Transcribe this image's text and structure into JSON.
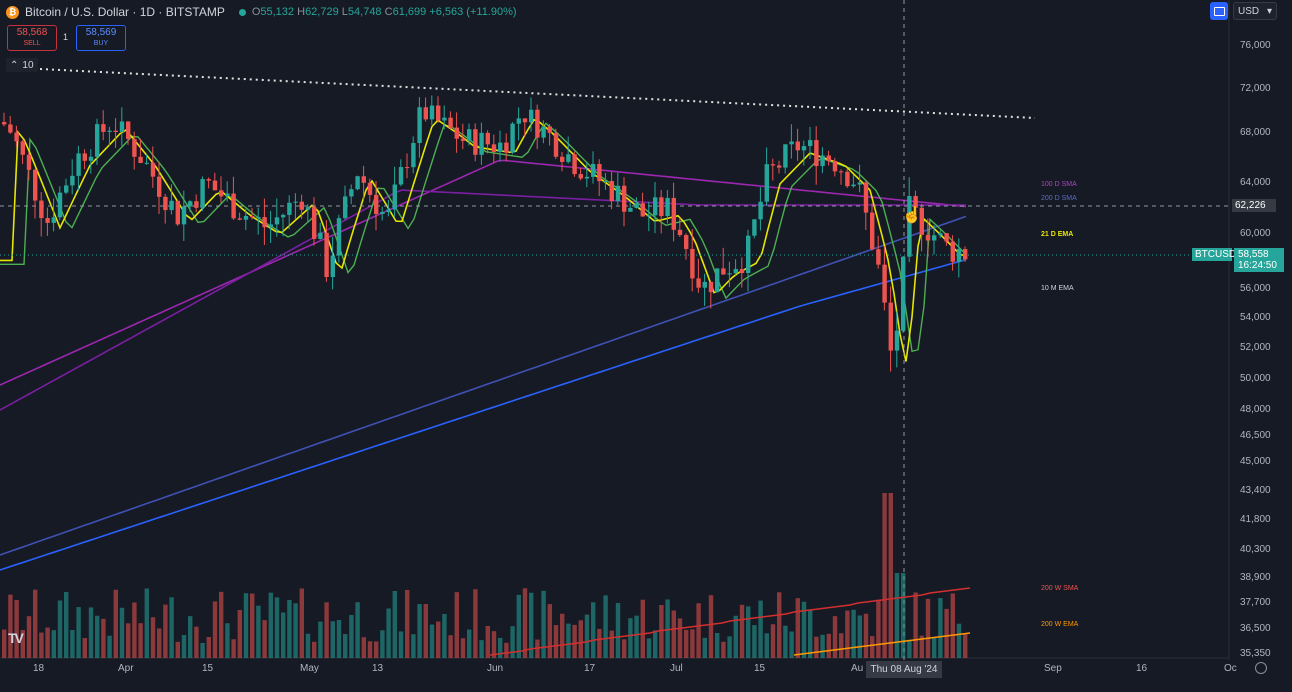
{
  "header": {
    "symbol_title": "Bitcoin / U.S. Dollar · 1D · BITSTAMP",
    "open_label": "O",
    "open": "55,132",
    "high_label": "H",
    "high": "62,729",
    "low_label": "L",
    "low": "54,748",
    "close_label": "C",
    "close": "61,699",
    "change": "+6,563 (+11.90%)"
  },
  "trade": {
    "sell_price": "58,568",
    "sell_label": "SELL",
    "spread": "1",
    "buy_price": "58,569",
    "buy_label": "BUY"
  },
  "indicator_toggle": "10",
  "currency": "USD",
  "price_axis": [
    "76,000",
    "72,000",
    "68,000",
    "64,000",
    "60,000",
    "56,000",
    "54,000",
    "52,000",
    "50,000",
    "48,000",
    "46,500",
    "45,000",
    "43,400",
    "41,800",
    "40,300",
    "38,900",
    "37,700",
    "36,500",
    "35,350"
  ],
  "crosshair_price": "62,226",
  "last_price": {
    "symbol": "BTCUSD",
    "price": "58,558",
    "countdown": "16:24:50"
  },
  "time_axis": [
    "18",
    "Apr",
    "15",
    "May",
    "13",
    "Jun",
    "17",
    "Jul",
    "15",
    "Au",
    "Sep",
    "16",
    "Oc"
  ],
  "hover_date": "Thu 08 Aug '24",
  "ma_labels": {
    "sma100d": "100 D SMA",
    "sma200d": "200 D SMA",
    "ema21d": "21 D EMA",
    "ema10m": "10 M EMA",
    "sma200w": "200 W SMA",
    "ema200w": "200 W EMA"
  },
  "colors": {
    "up": "#26a69a",
    "down": "#ef5350",
    "ema_yellow": "#e6e600",
    "ema_green": "#4caf50",
    "sma_purple": "#9c27b0",
    "sma_blue": "#2962ff",
    "w_sma_red": "#c62828",
    "w_ema_orange": "#ff9800",
    "background": "#161a25"
  },
  "icons": {
    "logo": "tradingview-logo-icon",
    "settings": "gear-icon",
    "toggle": "chevron-up-icon",
    "cursor": "hand-cursor-icon"
  }
}
